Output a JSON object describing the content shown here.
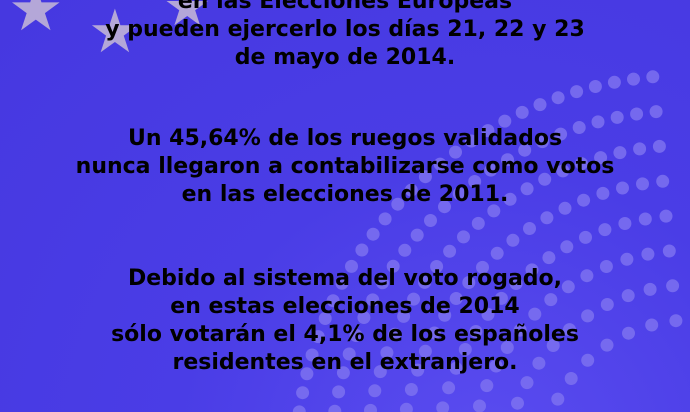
{
  "poster": {
    "background_color": "#4d3fe8",
    "star_color": "#b4a7d8",
    "text_color": "#000000",
    "decoration": {
      "stars": "eu-flag-stars",
      "background": "parliament-hemicycle-seat-dots"
    }
  },
  "paragraphs": [
    {
      "lines": [
        "en las Elecciones Europeas",
        "y pueden ejercerlo los días 21, 22 y 23",
        "de mayo de 2014."
      ]
    },
    {
      "lines": [
        "Un 45,64% de los ruegos validados",
        "nunca llegaron a contabilizarse como votos",
        "en las elecciones de 2011."
      ]
    },
    {
      "lines": [
        "Debido al sistema del voto rogado,",
        "en estas elecciones de 2014",
        "sólo votarán el 4,1% de los españoles",
        "residentes en el extranjero."
      ]
    }
  ]
}
